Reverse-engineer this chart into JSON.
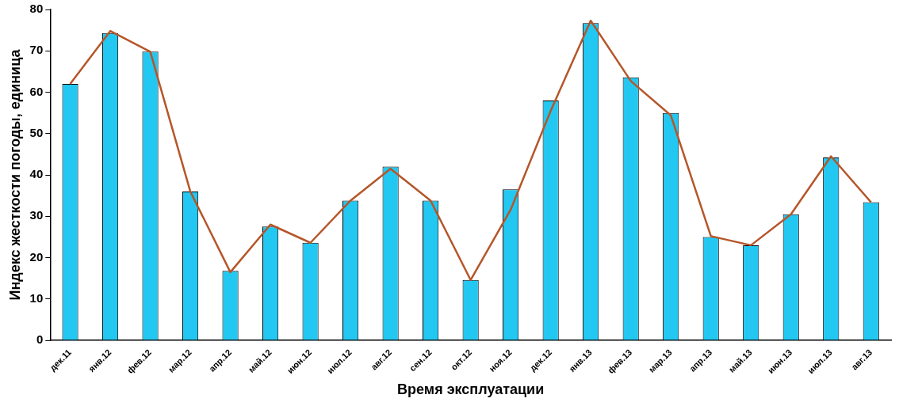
{
  "chart_data": {
    "type": "bar",
    "xlabel": "Время эксплуатации",
    "ylabel": "Индекс жесткости погоды, единица",
    "categories": [
      "дек.11",
      "янв.12",
      "фев.12",
      "мар.12",
      "апр.12",
      "май.12",
      "июн.12",
      "июл.12",
      "авг.12",
      "сен.12",
      "окт.12",
      "ноя.12",
      "дек.12",
      "янв.13",
      "фев.13",
      "мар.13",
      "апр.13",
      "май.13",
      "июн.13",
      "июл.13",
      "авг.13"
    ],
    "series": [
      {
        "color": "#22c8f2",
        "values": [
          62,
          74.3,
          69.8,
          36,
          16.8,
          27.5,
          23.6,
          33.8,
          42,
          33.8,
          14.6,
          36.5,
          58,
          76.7,
          63.6,
          55,
          25,
          23,
          30.5,
          44.2,
          33.4
        ]
      },
      {
        "type": "line",
        "color": "#b5562a",
        "values": [
          62,
          74.8,
          69.8,
          36,
          16.5,
          28,
          23.6,
          33.8,
          41.5,
          33.8,
          14.6,
          31.6,
          55.5,
          77.3,
          62.7,
          54.4,
          25.2,
          23,
          30.5,
          44.5,
          33.4
        ]
      }
    ],
    "ylim": [
      0,
      80
    ],
    "yticks": [
      0,
      10,
      20,
      30,
      40,
      50,
      60,
      70,
      80
    ],
    "grid": false,
    "legend": false,
    "marker": "none",
    "line_style": "solid"
  }
}
